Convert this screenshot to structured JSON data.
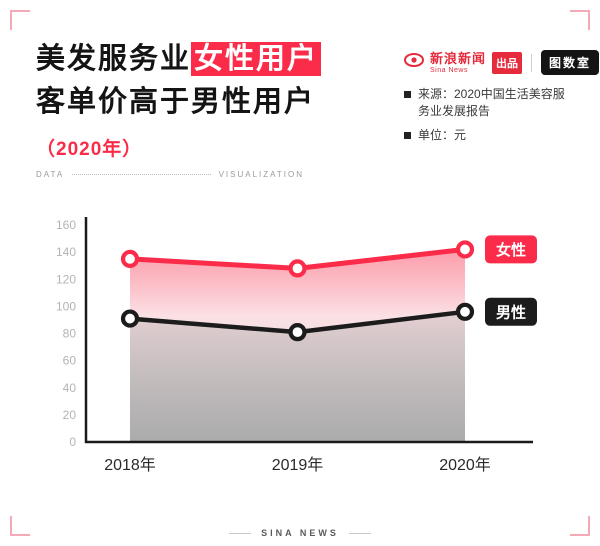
{
  "page": {
    "accent": "#fb2c4a",
    "footer": "SINA NEWS"
  },
  "title": {
    "line1_normal": "美发服务业",
    "line1_highlight": "女性用户",
    "line2": "客单价高于男性用户",
    "year": "（2020年）"
  },
  "brand": {
    "sina_name": "新浪新闻",
    "sina_sub": "Sina News",
    "produce_badge": "出品",
    "lab_badge": "图数室"
  },
  "meta": {
    "source_label": "来源：2020中国生活美容服务业发展报告",
    "unit_label": "单位：元"
  },
  "divider": {
    "left": "DATA",
    "right": "VISUALIZATION"
  },
  "chart_data": {
    "type": "line",
    "categories": [
      "2018年",
      "2019年",
      "2020年"
    ],
    "series": [
      {
        "name": "女性",
        "color": "#fb2c4a",
        "values": [
          135,
          128,
          142
        ]
      },
      {
        "name": "男性",
        "color": "#1c1c1c",
        "values": [
          91,
          81,
          96
        ]
      }
    ],
    "ylim": [
      0,
      160
    ],
    "ytick_step": 20,
    "grid": false,
    "legend_position": "right-of-last-point",
    "xlabel": "",
    "ylabel": "",
    "unit": "元"
  }
}
